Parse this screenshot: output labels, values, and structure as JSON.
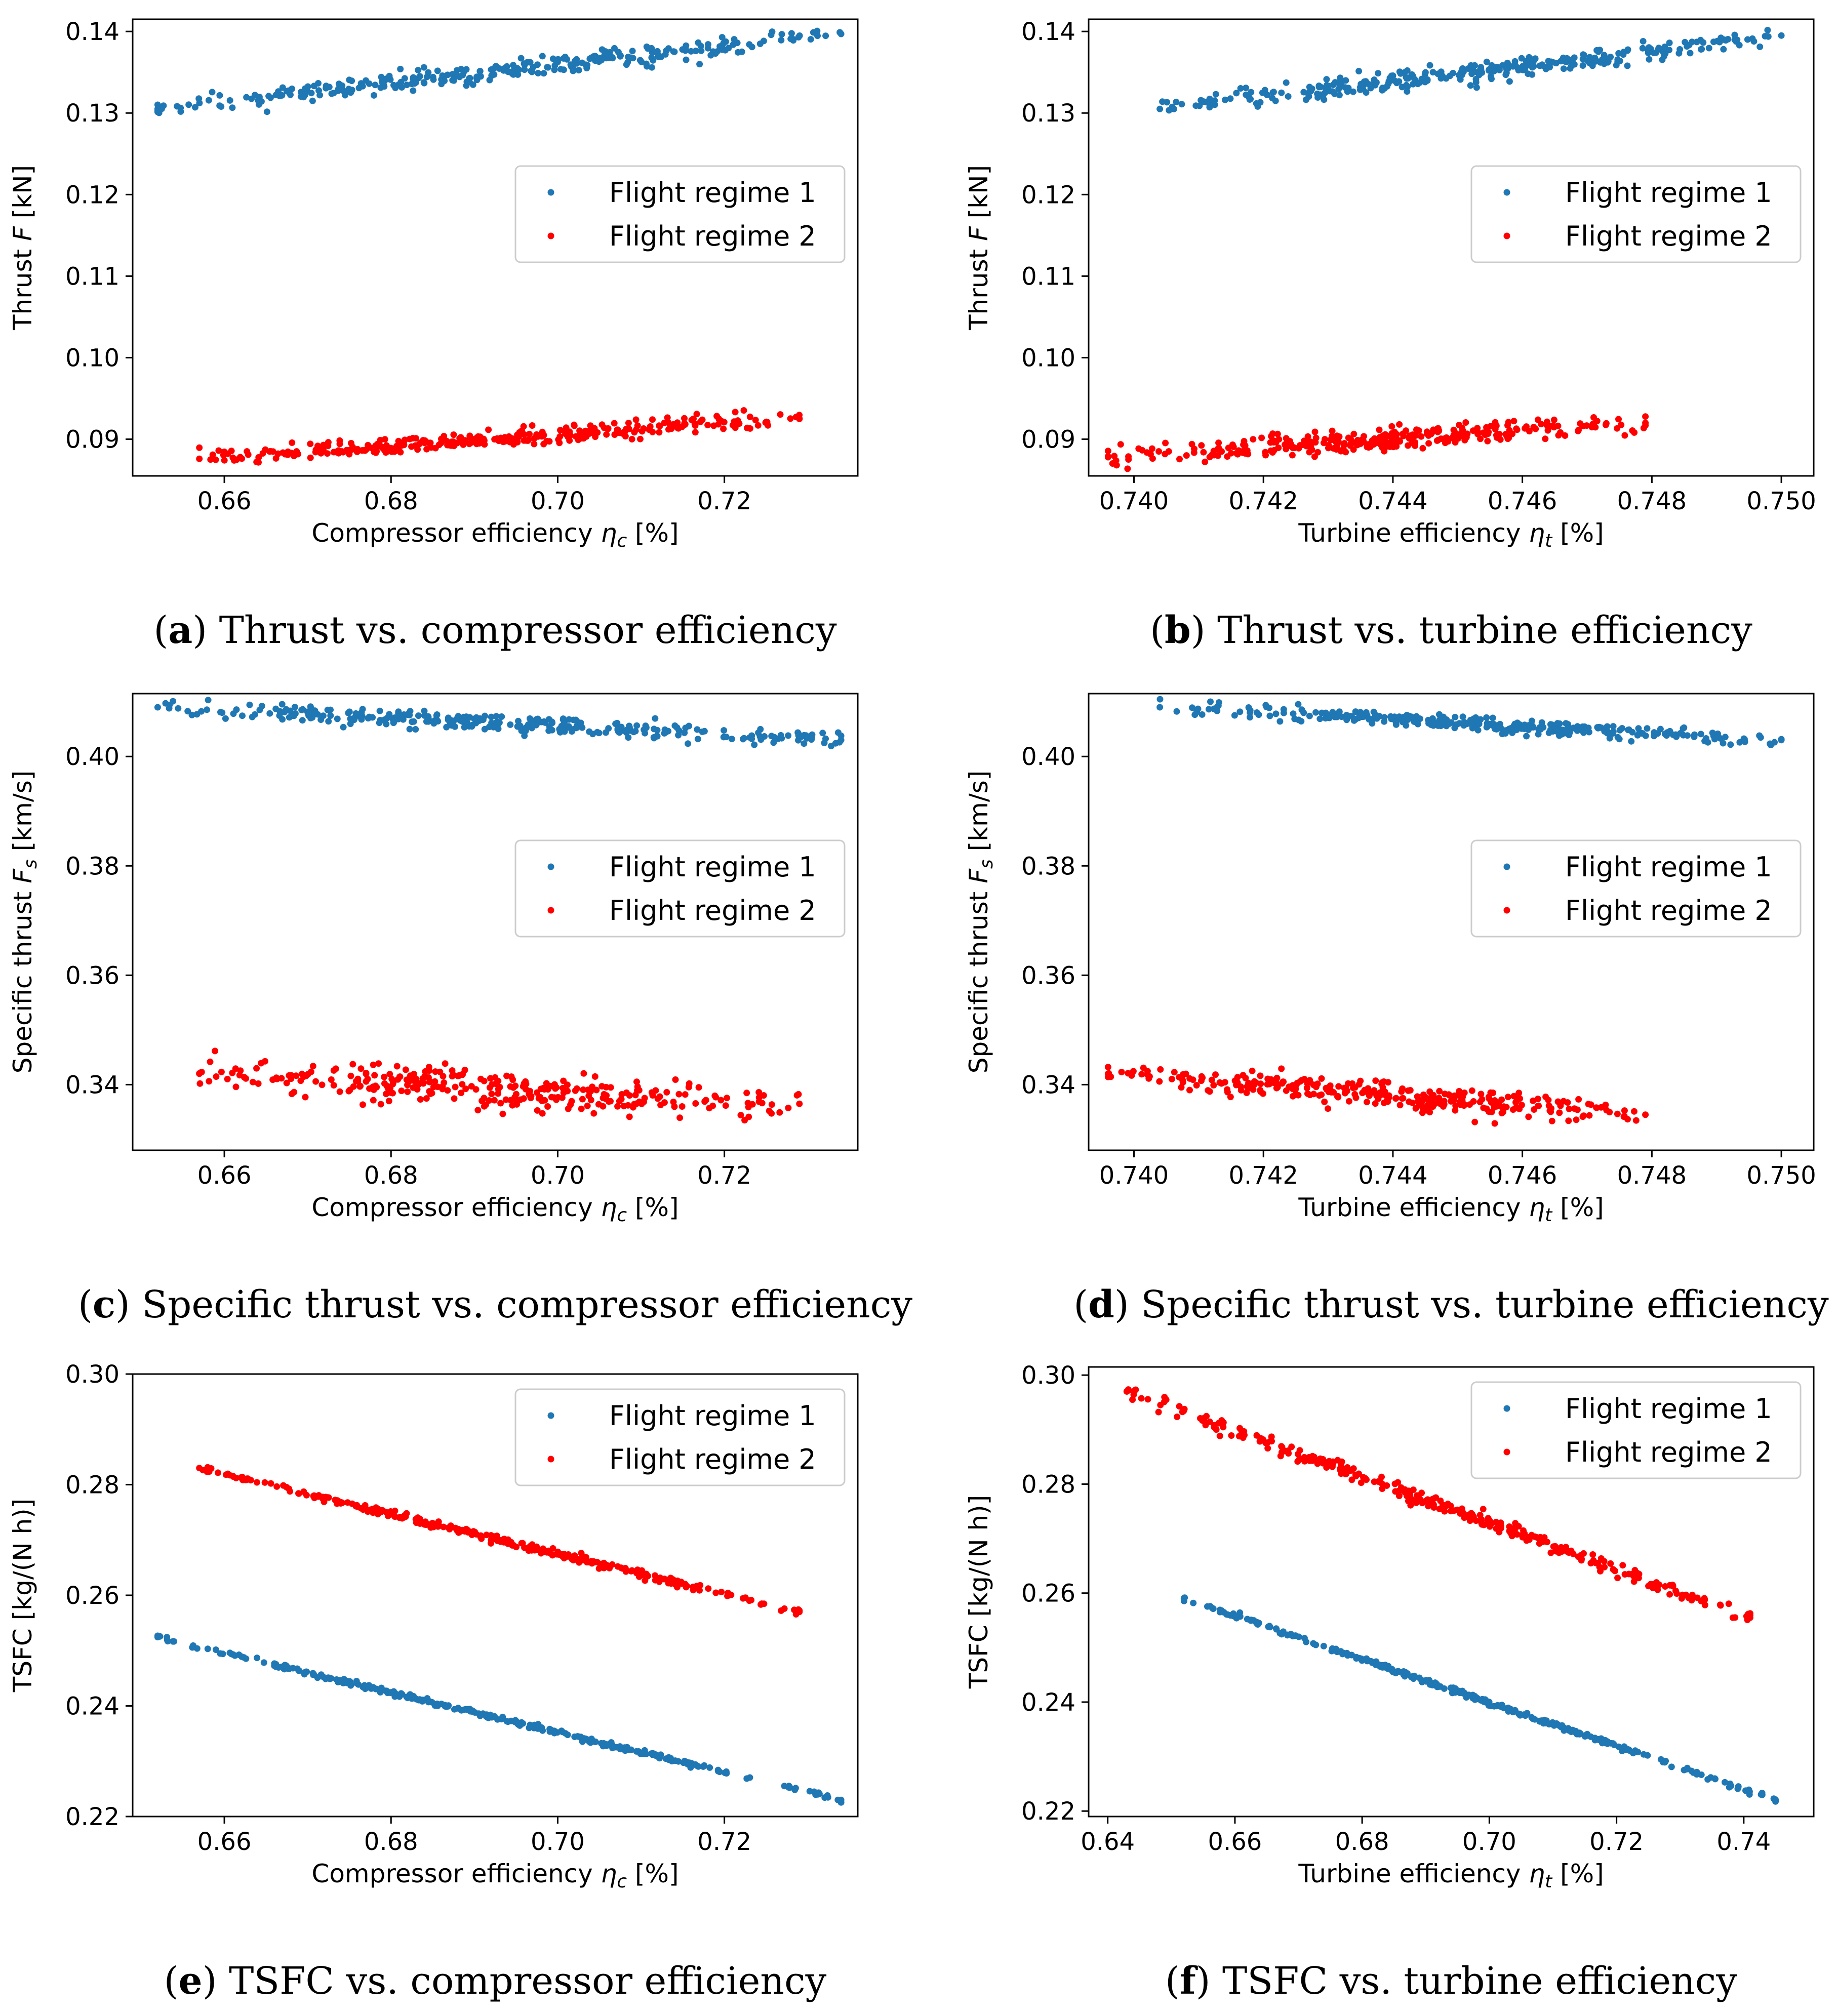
{
  "colors": {
    "regime1": "#1f77b4",
    "regime2": "#ff0000"
  },
  "chart_data": [
    {
      "id": "a",
      "type": "scatter",
      "caption": {
        "letter": "a",
        "text": "Thrust vs. compressor efficiency"
      },
      "xlabel": {
        "prefix": "Compressor efficiency ",
        "sym": "η",
        "sub": "c",
        "suffix": " [%]"
      },
      "ylabel": {
        "prefix": "Thrust ",
        "sym": "F",
        "sub": "",
        "suffix": " [kN]"
      },
      "xlim": [
        0.649,
        0.736
      ],
      "ylim": [
        0.0855,
        0.1415
      ],
      "xticks": [
        0.66,
        0.68,
        0.7,
        0.72
      ],
      "xtick_labels": [
        "0.66",
        "0.68",
        "0.70",
        "0.72"
      ],
      "yticks": [
        0.09,
        0.1,
        0.11,
        0.12,
        0.13,
        0.14
      ],
      "ytick_labels": [
        "0.09",
        "0.10",
        "0.11",
        "0.12",
        "0.13",
        "0.14"
      ],
      "legend": {
        "location": "center-right",
        "entries": [
          "Flight regime 1",
          "Flight regime 2"
        ]
      },
      "series": [
        {
          "name": "Flight regime 1",
          "color": "#1f77b4",
          "x_range": [
            0.652,
            0.734
          ],
          "y_start": 0.1305,
          "y_end": 0.1397,
          "spread": 0.001,
          "n": 320
        },
        {
          "name": "Flight regime 2",
          "color": "#ff0000",
          "x_range": [
            0.657,
            0.729
          ],
          "y_start": 0.0876,
          "y_end": 0.0925,
          "spread": 0.0009,
          "n": 320
        }
      ]
    },
    {
      "id": "b",
      "type": "scatter",
      "caption": {
        "letter": "b",
        "text": "Thrust vs. turbine efficiency"
      },
      "xlabel": {
        "prefix": "Turbine efficiency ",
        "sym": "η",
        "sub": "t",
        "suffix": " [%]"
      },
      "ylabel": {
        "prefix": "Thrust ",
        "sym": "F",
        "sub": "",
        "suffix": " [kN]"
      },
      "xlim": [
        0.7393,
        0.7505
      ],
      "ylim": [
        0.0855,
        0.1415
      ],
      "xticks": [
        0.74,
        0.742,
        0.744,
        0.746,
        0.748,
        0.75
      ],
      "xtick_labels": [
        "0.740",
        "0.742",
        "0.744",
        "0.746",
        "0.748",
        "0.750"
      ],
      "yticks": [
        0.09,
        0.1,
        0.11,
        0.12,
        0.13,
        0.14
      ],
      "ytick_labels": [
        "0.09",
        "0.10",
        "0.11",
        "0.12",
        "0.13",
        "0.14"
      ],
      "legend": {
        "location": "center-right",
        "entries": [
          "Flight regime 1",
          "Flight regime 2"
        ]
      },
      "series": [
        {
          "name": "Flight regime 1",
          "color": "#1f77b4",
          "x_range": [
            0.7404,
            0.75
          ],
          "y_start": 0.1305,
          "y_end": 0.1395,
          "spread": 0.0011,
          "n": 320
        },
        {
          "name": "Flight regime 2",
          "color": "#ff0000",
          "x_range": [
            0.7396,
            0.7479
          ],
          "y_start": 0.0878,
          "y_end": 0.092,
          "spread": 0.0011,
          "n": 320
        }
      ]
    },
    {
      "id": "c",
      "type": "scatter",
      "caption": {
        "letter": "c",
        "text": "Specific thrust vs. compressor efficiency"
      },
      "xlabel": {
        "prefix": "Compressor efficiency ",
        "sym": "η",
        "sub": "c",
        "suffix": " [%]"
      },
      "ylabel": {
        "prefix": "Specific thrust ",
        "sym": "F",
        "sub": "s",
        "suffix": " [km/s]"
      },
      "xlim": [
        0.649,
        0.736
      ],
      "ylim": [
        0.328,
        0.4115
      ],
      "xticks": [
        0.66,
        0.68,
        0.7,
        0.72
      ],
      "xtick_labels": [
        "0.66",
        "0.68",
        "0.70",
        "0.72"
      ],
      "yticks": [
        0.34,
        0.36,
        0.38,
        0.4
      ],
      "ytick_labels": [
        "0.34",
        "0.36",
        "0.38",
        "0.40"
      ],
      "legend": {
        "location": "center-right",
        "entries": [
          "Flight regime 1",
          "Flight regime 2"
        ]
      },
      "series": [
        {
          "name": "Flight regime 1",
          "color": "#1f77b4",
          "x_range": [
            0.652,
            0.734
          ],
          "y_start": 0.409,
          "y_end": 0.403,
          "spread": 0.0015,
          "n": 320
        },
        {
          "name": "Flight regime 2",
          "color": "#ff0000",
          "x_range": [
            0.657,
            0.729
          ],
          "y_start": 0.342,
          "y_end": 0.3365,
          "spread": 0.003,
          "n": 320
        }
      ]
    },
    {
      "id": "d",
      "type": "scatter",
      "caption": {
        "letter": "d",
        "text": "Specific thrust vs. turbine efficiency"
      },
      "xlabel": {
        "prefix": "Turbine efficiency ",
        "sym": "η",
        "sub": "t",
        "suffix": " [%]"
      },
      "ylabel": {
        "prefix": "Specific thrust ",
        "sym": "F",
        "sub": "s",
        "suffix": " [km/s]"
      },
      "xlim": [
        0.7393,
        0.7505
      ],
      "ylim": [
        0.328,
        0.4115
      ],
      "xticks": [
        0.74,
        0.742,
        0.744,
        0.746,
        0.748,
        0.75
      ],
      "xtick_labels": [
        "0.740",
        "0.742",
        "0.744",
        "0.746",
        "0.748",
        "0.750"
      ],
      "yticks": [
        0.34,
        0.36,
        0.38,
        0.4
      ],
      "ytick_labels": [
        "0.34",
        "0.36",
        "0.38",
        "0.40"
      ],
      "legend": {
        "location": "center-right",
        "entries": [
          "Flight regime 1",
          "Flight regime 2"
        ]
      },
      "series": [
        {
          "name": "Flight regime 1",
          "color": "#1f77b4",
          "x_range": [
            0.7404,
            0.75
          ],
          "y_start": 0.409,
          "y_end": 0.403,
          "spread": 0.0012,
          "n": 320
        },
        {
          "name": "Flight regime 2",
          "color": "#ff0000",
          "x_range": [
            0.7396,
            0.7479
          ],
          "y_start": 0.342,
          "y_end": 0.3345,
          "spread": 0.002,
          "n": 320
        }
      ]
    },
    {
      "id": "e",
      "type": "scatter",
      "caption": {
        "letter": "e",
        "text": "TSFC vs. compressor efficiency"
      },
      "xlabel": {
        "prefix": "Compressor efficiency ",
        "sym": "η",
        "sub": "c",
        "suffix": " [%]"
      },
      "ylabel": {
        "prefix": "TSFC [kg/(N h)]",
        "sym": "",
        "sub": "",
        "suffix": ""
      },
      "xlim": [
        0.649,
        0.736
      ],
      "ylim": [
        0.22,
        0.3
      ],
      "xticks": [
        0.66,
        0.68,
        0.7,
        0.72
      ],
      "xtick_labels": [
        "0.66",
        "0.68",
        "0.70",
        "0.72"
      ],
      "yticks": [
        0.22,
        0.24,
        0.26,
        0.28,
        0.3
      ],
      "ytick_labels": [
        "0.22",
        "0.24",
        "0.26",
        "0.28",
        "0.30"
      ],
      "legend": {
        "location": "upper-right",
        "entries": [
          "Flight regime 1",
          "Flight regime 2"
        ]
      },
      "series": [
        {
          "name": "Flight regime 1",
          "color": "#1f77b4",
          "x_range": [
            0.652,
            0.734
          ],
          "y_start": 0.2525,
          "y_end": 0.223,
          "spread": 0.0004,
          "n": 320
        },
        {
          "name": "Flight regime 2",
          "color": "#ff0000",
          "x_range": [
            0.657,
            0.729
          ],
          "y_start": 0.283,
          "y_end": 0.257,
          "spread": 0.0006,
          "n": 320
        }
      ]
    },
    {
      "id": "f",
      "type": "scatter",
      "caption": {
        "letter": "f",
        "text": "TSFC vs. turbine efficiency"
      },
      "xlabel": {
        "prefix": "Turbine efficiency ",
        "sym": "η",
        "sub": "t",
        "suffix": " [%]"
      },
      "ylabel": {
        "prefix": "TSFC [kg/(N h)]",
        "sym": "",
        "sub": "",
        "suffix": ""
      },
      "xlim": [
        0.637,
        0.751
      ],
      "ylim": [
        0.219,
        0.3015
      ],
      "xticks": [
        0.64,
        0.66,
        0.68,
        0.7,
        0.72,
        0.74
      ],
      "xtick_labels": [
        "0.64",
        "0.66",
        "0.68",
        "0.70",
        "0.72",
        "0.74"
      ],
      "yticks": [
        0.22,
        0.24,
        0.26,
        0.28,
        0.3
      ],
      "ytick_labels": [
        "0.22",
        "0.24",
        "0.26",
        "0.28",
        "0.30"
      ],
      "legend": {
        "location": "upper-right",
        "entries": [
          "Flight regime 1",
          "Flight regime 2"
        ]
      },
      "series": [
        {
          "name": "Flight regime 1",
          "color": "#1f77b4",
          "x_range": [
            0.652,
            0.745
          ],
          "y_start": 0.259,
          "y_end": 0.222,
          "spread": 0.0004,
          "n": 320
        },
        {
          "name": "Flight regime 2",
          "color": "#ff0000",
          "x_range": [
            0.643,
            0.741
          ],
          "y_start": 0.297,
          "y_end": 0.2555,
          "spread": 0.0012,
          "n": 320
        }
      ]
    }
  ]
}
